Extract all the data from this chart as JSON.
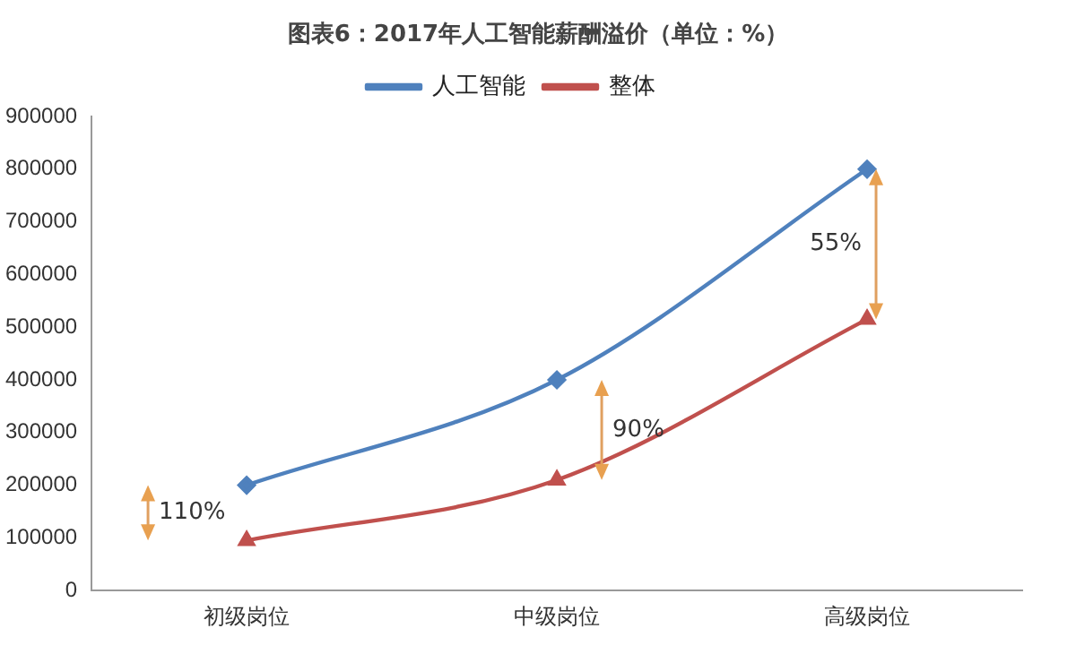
{
  "chart_data": {
    "type": "line",
    "title": "图表6：2017年人工智能薪酬溢价（单位：%）",
    "categories": [
      "初级岗位",
      "中级岗位",
      "高级岗位"
    ],
    "series": [
      {
        "name": "人工智能",
        "color": "#4f81bd",
        "values": [
          200000,
          400000,
          800000
        ],
        "marker": "diamond"
      },
      {
        "name": "整体",
        "color": "#c0504d",
        "values": [
          95000,
          210000,
          515000
        ],
        "marker": "triangle"
      }
    ],
    "ylim": [
      0,
      900000
    ],
    "yticks": [
      0,
      100000,
      200000,
      300000,
      400000,
      500000,
      600000,
      700000,
      800000,
      900000
    ],
    "grid": false,
    "legend": "top",
    "annotations": [
      "110%",
      "90%",
      "55%"
    ]
  }
}
